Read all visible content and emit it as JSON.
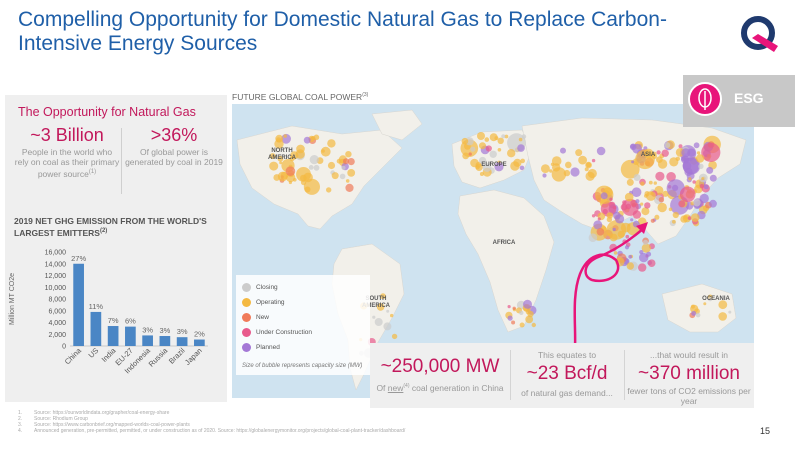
{
  "title": "Compelling Opportunity for Domestic Natural Gas to Replace Carbon-Intensive Energy Sources",
  "opportunity": {
    "heading": "The Opportunity for Natural Gas",
    "stat1_value": "~3 Billion",
    "stat1_desc": "People in the world who rely on coal as their primary power source",
    "stat1_sup": "(1)",
    "stat2_value": ">36%",
    "stat2_desc": "Of global power is generated by coal in 2019"
  },
  "chart_title": "2019 NET GHG EMISSION FROM THE WORLD'S LARGEST EMITTERS",
  "chart_title_sup": "(2)",
  "chart_data": {
    "type": "bar",
    "categories": [
      "China",
      "US",
      "India",
      "EU-27",
      "Indonesia",
      "Russia",
      "Brazil",
      "Japan"
    ],
    "values": [
      14000,
      5800,
      3400,
      3300,
      1800,
      1700,
      1500,
      1100
    ],
    "data_labels": [
      "27%",
      "11%",
      "7%",
      "6%",
      "3%",
      "3%",
      "3%",
      "2%"
    ],
    "ylabel": "Million MT CO2e",
    "yticks": [
      "0",
      "2,000",
      "4,000",
      "6,000",
      "8,000",
      "10,000",
      "12,000",
      "14,000",
      "16,000"
    ],
    "ylim": [
      0,
      16000
    ],
    "bar_color": "#4a86c5"
  },
  "map": {
    "title": "FUTURE GLOBAL COAL POWER",
    "title_sup": "(3)",
    "labels": {
      "north_america": [
        "NORTH",
        "AMERICA"
      ],
      "south_america": [
        "SOUTH",
        "AMERICA"
      ],
      "europe": "EUROPE",
      "africa": "AFRICA",
      "asia": "ASIA",
      "oceania": "OCEANIA"
    },
    "legend": [
      {
        "label": "Closing",
        "color": "#cccccc"
      },
      {
        "label": "Operating",
        "color": "#f4b942"
      },
      {
        "label": "New",
        "color": "#f07b5a"
      },
      {
        "label": "Under Construction",
        "color": "#e85a8c"
      },
      {
        "label": "Planned",
        "color": "#a478d6"
      }
    ],
    "legend_note": "Size of bubble represents capacity size (MW)"
  },
  "esg": {
    "label": "ESG",
    "accent": "#e8157a"
  },
  "bottom": {
    "b1_value": "~250,000 MW",
    "b1_desc_pre": "Of ",
    "b1_desc_new": "new",
    "b1_sup": "(4)",
    "b1_desc_post": " coal generation in China",
    "b2_pre": "This equates to",
    "b2_value": "~23 Bcf/d",
    "b2_desc": "of natural gas demand...",
    "b3_pre": "...that would result in",
    "b3_value": "~370 million",
    "b3_desc": "fewer tons of CO2 emissions per year"
  },
  "footnotes": [
    {
      "num": "1.",
      "text": "Source: https://ourworldindata.org/grapher/coal-energy-share"
    },
    {
      "num": "2.",
      "text": "Source: Rhodium Group"
    },
    {
      "num": "3.",
      "text": "Source: https://www.carbonbrief.org/mapped-worlds-coal-power-plants"
    },
    {
      "num": "4.",
      "text": "Announced generation, pre-permitted, permitted, or under construction as of 2020. Source: https://globalenergymonitor.org/projects/global-coal-plant-tracker/dashboard/"
    }
  ],
  "page_number": "15"
}
